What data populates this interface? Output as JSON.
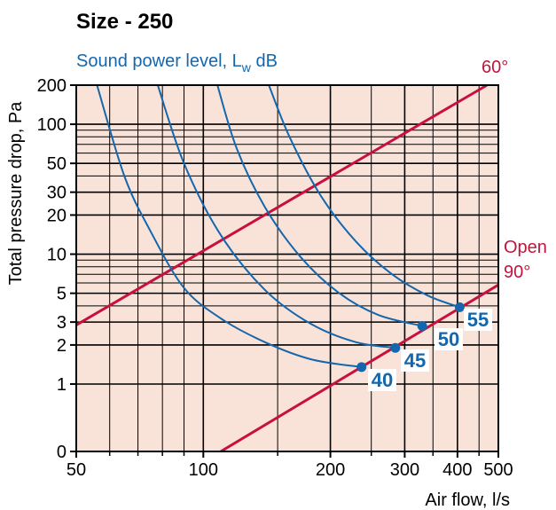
{
  "chart_data": {
    "type": "line",
    "title": "Size - 250",
    "subtitle": {
      "text": "Sound power level, L",
      "subscript": "w",
      "suffix": " dB"
    },
    "xlabel": "Air flow, l/s",
    "ylabel": "Total pressure drop, Pa",
    "x_scale": "log",
    "y_scale": "log",
    "xlim": [
      50,
      500
    ],
    "ylim": [
      0,
      200
    ],
    "x_ticks": [
      {
        "value": 50,
        "label": "50"
      },
      {
        "value": 100,
        "label": "100"
      },
      {
        "value": 200,
        "label": "200"
      },
      {
        "value": 300,
        "label": "300"
      },
      {
        "value": 400,
        "label": "400"
      },
      {
        "value": 500,
        "label": "500"
      }
    ],
    "x_minor_grid": [
      60,
      70,
      80,
      90,
      150,
      250,
      350,
      450
    ],
    "y_ticks": [
      {
        "value": 0,
        "label": "0"
      },
      {
        "value": 1,
        "label": "1"
      },
      {
        "value": 2,
        "label": "2"
      },
      {
        "value": 3,
        "label": "3"
      },
      {
        "value": 5,
        "label": "5"
      },
      {
        "value": 10,
        "label": "10"
      },
      {
        "value": 20,
        "label": "20"
      },
      {
        "value": 30,
        "label": "30"
      },
      {
        "value": 50,
        "label": "50"
      },
      {
        "value": 100,
        "label": "100"
      },
      {
        "value": 200,
        "label": "200"
      }
    ],
    "y_minor_grid": [
      4,
      6,
      7,
      8,
      9,
      40,
      60,
      70,
      80,
      90
    ],
    "grid": true,
    "damper_lines": [
      {
        "label": "60°",
        "points": [
          [
            50,
            2.85
          ],
          [
            470,
            200
          ]
        ]
      },
      {
        "label_lines": [
          "Open",
          "90°"
        ],
        "points": [
          [
            110,
            0
          ],
          [
            500,
            5.8
          ]
        ]
      }
    ],
    "series": [
      {
        "name": "40",
        "x": [
          56,
          65,
          75,
          90,
          110,
          140,
          180,
          237
        ],
        "y": [
          200,
          40,
          15,
          5.5,
          3.2,
          2.1,
          1.55,
          1.35
        ],
        "end_point": [
          237,
          1.35
        ]
      },
      {
        "name": "45",
        "x": [
          78,
          90,
          110,
          140,
          180,
          230,
          285
        ],
        "y": [
          200,
          50,
          14,
          5.3,
          2.9,
          2.1,
          1.9
        ],
        "end_point": [
          285,
          1.9
        ]
      },
      {
        "name": "50",
        "x": [
          108,
          120,
          140,
          170,
          210,
          260,
          330
        ],
        "y": [
          200,
          65,
          23,
          9.5,
          5.0,
          3.4,
          2.8
        ],
        "end_point": [
          330,
          2.8
        ]
      },
      {
        "name": "55",
        "x": [
          143,
          160,
          190,
          230,
          280,
          340,
          405
        ],
        "y": [
          200,
          80,
          28,
          12.5,
          7.0,
          4.8,
          3.9
        ],
        "end_point": [
          405,
          3.9
        ]
      }
    ],
    "colors": {
      "background": "#f9e3d8",
      "grid": "#000000",
      "damper": "#c8103e",
      "series": "#1466ad",
      "frame": "#000000"
    }
  }
}
